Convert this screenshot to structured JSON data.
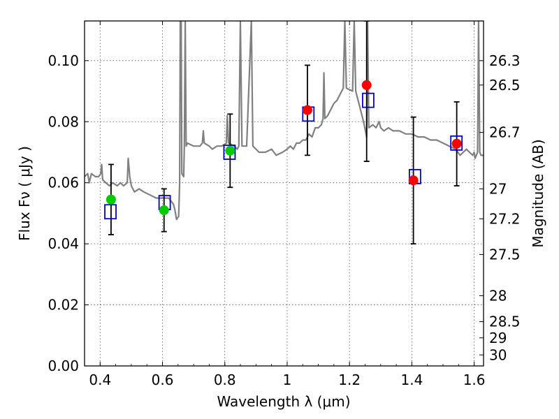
{
  "chart_data": {
    "type": "scatter",
    "xlabel": "Wavelength  λ (μm)",
    "ylabel": "Flux  Fν  ( μJy )",
    "y2label": "Magnitude (AB)",
    "xlim": [
      0.35,
      1.63
    ],
    "ylim": [
      0.0,
      0.113
    ],
    "grid": true,
    "x_ticks": [
      0.4,
      0.6,
      0.8,
      1.0,
      1.2,
      1.4,
      1.6
    ],
    "x_tick_labels": [
      "0.4",
      "0.6",
      "0.8",
      "1",
      "1.2",
      "1.4",
      "1.6"
    ],
    "y_ticks": [
      0.0,
      0.02,
      0.04,
      0.06,
      0.08,
      0.1
    ],
    "y_tick_labels": [
      "0.00",
      "0.02",
      "0.04",
      "0.06",
      "0.08",
      "0.10"
    ],
    "y2_ticks": [
      {
        "label": "26.3",
        "flux": 0.1
      },
      {
        "label": "26.5",
        "flux": 0.092
      },
      {
        "label": "26.7",
        "flux": 0.0765
      },
      {
        "label": "27",
        "flux": 0.058
      },
      {
        "label": "27.2",
        "flux": 0.0482
      },
      {
        "label": "27.5",
        "flux": 0.0365
      },
      {
        "label": "28",
        "flux": 0.023
      },
      {
        "label": "28.5",
        "flux": 0.0145
      },
      {
        "label": "29",
        "flux": 0.0092
      },
      {
        "label": "30",
        "flux": 0.0036
      }
    ],
    "colors": {
      "spectrum": "#808080",
      "model_box": "#0000cc",
      "green_points": "#00cc00",
      "red_points": "#ff0000",
      "errorbar": "#000000",
      "grid": "#555555"
    },
    "series": [
      {
        "type": "line",
        "points": [
          [
            0.35,
            0.062
          ],
          [
            0.36,
            0.063
          ],
          [
            0.365,
            0.06
          ],
          [
            0.372,
            0.063
          ],
          [
            0.385,
            0.062
          ],
          [
            0.395,
            0.062
          ],
          [
            0.402,
            0.063
          ],
          [
            0.405,
            0.066
          ],
          [
            0.408,
            0.061
          ],
          [
            0.418,
            0.06
          ],
          [
            0.43,
            0.059
          ],
          [
            0.44,
            0.06
          ],
          [
            0.455,
            0.059
          ],
          [
            0.465,
            0.06
          ],
          [
            0.475,
            0.059
          ],
          [
            0.487,
            0.06
          ],
          [
            0.49,
            0.068
          ],
          [
            0.495,
            0.062
          ],
          [
            0.5,
            0.059
          ],
          [
            0.51,
            0.057
          ],
          [
            0.525,
            0.058
          ],
          [
            0.54,
            0.057
          ],
          [
            0.56,
            0.056
          ],
          [
            0.58,
            0.055
          ],
          [
            0.6,
            0.055
          ],
          [
            0.62,
            0.055
          ],
          [
            0.635,
            0.053
          ],
          [
            0.64,
            0.051
          ],
          [
            0.645,
            0.048
          ],
          [
            0.652,
            0.049
          ],
          [
            0.655,
            0.06
          ],
          [
            0.657,
            0.113
          ],
          [
            0.66,
            0.113
          ],
          [
            0.662,
            0.063
          ],
          [
            0.668,
            0.062
          ],
          [
            0.67,
            0.072
          ],
          [
            0.673,
            0.113
          ],
          [
            0.676,
            0.072
          ],
          [
            0.68,
            0.073
          ],
          [
            0.7,
            0.072
          ],
          [
            0.72,
            0.072
          ],
          [
            0.728,
            0.073
          ],
          [
            0.731,
            0.077
          ],
          [
            0.734,
            0.073
          ],
          [
            0.75,
            0.072
          ],
          [
            0.76,
            0.071
          ],
          [
            0.775,
            0.072
          ],
          [
            0.79,
            0.072
          ],
          [
            0.805,
            0.073
          ],
          [
            0.808,
            0.082
          ],
          [
            0.812,
            0.073
          ],
          [
            0.83,
            0.072
          ],
          [
            0.84,
            0.071
          ],
          [
            0.845,
            0.072
          ],
          [
            0.85,
            0.113
          ],
          [
            0.855,
            0.072
          ],
          [
            0.87,
            0.072
          ],
          [
            0.885,
            0.113
          ],
          [
            0.89,
            0.072
          ],
          [
            0.91,
            0.07
          ],
          [
            0.93,
            0.07
          ],
          [
            0.95,
            0.071
          ],
          [
            0.965,
            0.069
          ],
          [
            0.985,
            0.07
          ],
          [
            1.0,
            0.071
          ],
          [
            1.01,
            0.072
          ],
          [
            1.02,
            0.071
          ],
          [
            1.03,
            0.073
          ],
          [
            1.04,
            0.073
          ],
          [
            1.05,
            0.074
          ],
          [
            1.06,
            0.074
          ],
          [
            1.07,
            0.076
          ],
          [
            1.08,
            0.075
          ],
          [
            1.09,
            0.078
          ],
          [
            1.1,
            0.078
          ],
          [
            1.11,
            0.079
          ],
          [
            1.115,
            0.081
          ],
          [
            1.118,
            0.096
          ],
          [
            1.121,
            0.081
          ],
          [
            1.13,
            0.082
          ],
          [
            1.14,
            0.084
          ],
          [
            1.15,
            0.086
          ],
          [
            1.16,
            0.087
          ],
          [
            1.17,
            0.089
          ],
          [
            1.18,
            0.091
          ],
          [
            1.185,
            0.113
          ],
          [
            1.19,
            0.091
          ],
          [
            1.21,
            0.09
          ],
          [
            1.215,
            0.113
          ],
          [
            1.22,
            0.09
          ],
          [
            1.23,
            0.086
          ],
          [
            1.245,
            0.08
          ],
          [
            1.255,
            0.075
          ],
          [
            1.258,
            0.113
          ],
          [
            1.262,
            0.078
          ],
          [
            1.275,
            0.079
          ],
          [
            1.285,
            0.078
          ],
          [
            1.295,
            0.08
          ],
          [
            1.3,
            0.078
          ],
          [
            1.31,
            0.077
          ],
          [
            1.325,
            0.078
          ],
          [
            1.34,
            0.077
          ],
          [
            1.36,
            0.077
          ],
          [
            1.38,
            0.076
          ],
          [
            1.4,
            0.076
          ],
          [
            1.42,
            0.075
          ],
          [
            1.44,
            0.075
          ],
          [
            1.46,
            0.074
          ],
          [
            1.48,
            0.074
          ],
          [
            1.5,
            0.073
          ],
          [
            1.52,
            0.072
          ],
          [
            1.54,
            0.071
          ],
          [
            1.555,
            0.069
          ],
          [
            1.565,
            0.07
          ],
          [
            1.575,
            0.071
          ],
          [
            1.585,
            0.07
          ],
          [
            1.595,
            0.069
          ],
          [
            1.6,
            0.07
          ],
          [
            1.603,
            0.068
          ],
          [
            1.607,
            0.069
          ],
          [
            1.611,
            0.07
          ],
          [
            1.614,
            0.113
          ],
          [
            1.618,
            0.07
          ],
          [
            1.622,
            0.069
          ],
          [
            1.63,
            0.069
          ]
        ]
      },
      {
        "type": "scatter",
        "marker": "square",
        "points": [
          [
            0.433,
            0.0505
          ],
          [
            0.607,
            0.0535
          ],
          [
            0.815,
            0.07
          ],
          [
            1.068,
            0.0825
          ],
          [
            1.26,
            0.087
          ],
          [
            1.41,
            0.062
          ],
          [
            1.543,
            0.073
          ]
        ]
      },
      {
        "type": "scatter",
        "marker": "circle",
        "points": [
          [
            0.435,
            0.0545,
            0.043,
            0.066
          ],
          [
            0.605,
            0.051,
            0.044,
            0.058
          ],
          [
            0.817,
            0.0705,
            0.0585,
            0.0825
          ]
        ]
      },
      {
        "type": "scatter",
        "marker": "circle",
        "points": [
          [
            1.065,
            0.0838,
            0.069,
            0.0985
          ],
          [
            1.255,
            0.092,
            0.067,
            0.113
          ],
          [
            1.405,
            0.0608,
            0.04,
            0.0815
          ],
          [
            1.544,
            0.0728,
            0.059,
            0.0865
          ]
        ]
      }
    ]
  }
}
